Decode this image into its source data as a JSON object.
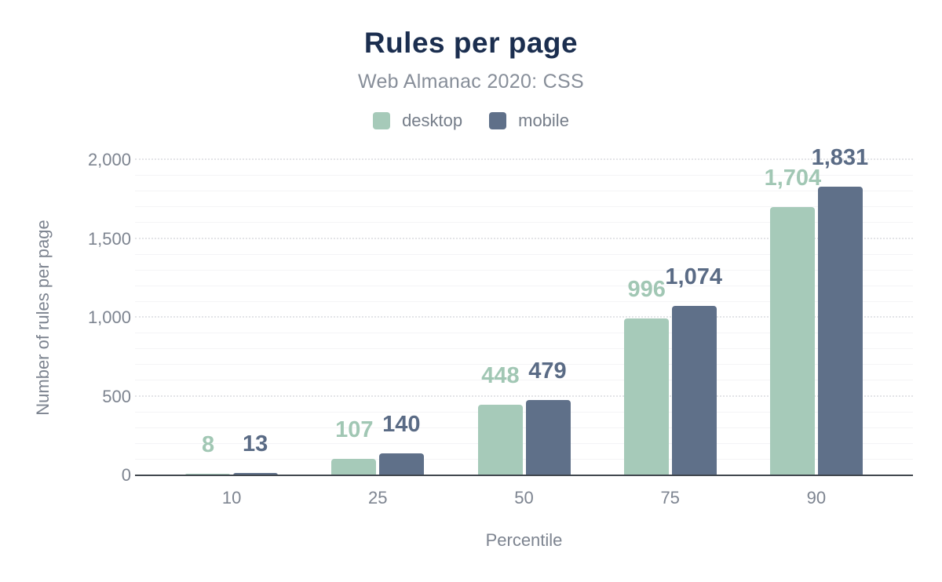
{
  "chart_data": {
    "type": "bar",
    "title": "Rules per page",
    "subtitle": "Web Almanac 2020: CSS",
    "xlabel": "Percentile",
    "ylabel": "Number of rules per page",
    "categories": [
      "10",
      "25",
      "50",
      "75",
      "90"
    ],
    "series": [
      {
        "name": "desktop",
        "color": "#a6cab9",
        "label_color": "#a1c7b4",
        "values": [
          8,
          107,
          448,
          996,
          1704
        ],
        "labels": [
          "8",
          "107",
          "448",
          "996",
          "1,704"
        ]
      },
      {
        "name": "mobile",
        "color": "#5f7089",
        "label_color": "#5a6b85",
        "values": [
          13,
          140,
          479,
          1074,
          1831
        ],
        "labels": [
          "13",
          "140",
          "479",
          "1,074",
          "1,831"
        ]
      }
    ],
    "ylim": [
      0,
      2000
    ],
    "yticks": [
      {
        "value": 0,
        "label": "0"
      },
      {
        "value": 500,
        "label": "500"
      },
      {
        "value": 1000,
        "label": "1,000"
      },
      {
        "value": 1500,
        "label": "1,500"
      },
      {
        "value": 2000,
        "label": "2,000"
      }
    ],
    "grid": {
      "minor_step": 100,
      "major_step": 500
    },
    "legend_position": "top",
    "colors": {
      "title": "#1b2e4f",
      "subtitle": "#878e99",
      "axis_text": "#7d8490",
      "axis_line": "#42484f",
      "background": "#ffffff"
    }
  }
}
